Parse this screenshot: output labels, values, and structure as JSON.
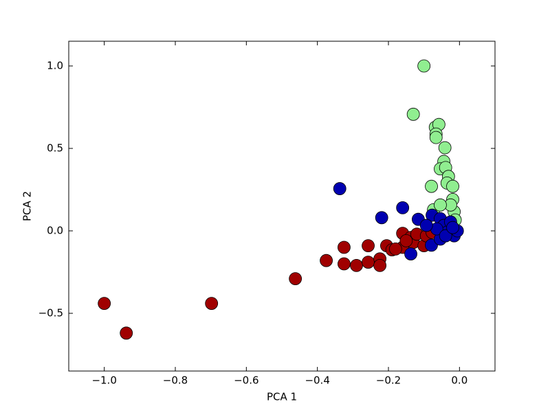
{
  "chart_data": {
    "type": "scatter",
    "xlabel": "PCA 1",
    "ylabel": "PCA 2",
    "xlim": [
      -1.1,
      0.1
    ],
    "ylim": [
      -0.85,
      1.15
    ],
    "xticks": [
      {
        "value": -1,
        "label": "−1.0"
      },
      {
        "value": -0.8,
        "label": "−0.8"
      },
      {
        "value": -0.6,
        "label": "−0.6"
      },
      {
        "value": -0.4,
        "label": "−0.4"
      },
      {
        "value": -0.2,
        "label": "−0.2"
      },
      {
        "value": 0,
        "label": "0.0"
      }
    ],
    "yticks": [
      {
        "value": -0.5,
        "label": "−0.5"
      },
      {
        "value": 0,
        "label": "0.0"
      },
      {
        "value": 0.5,
        "label": "0.5"
      },
      {
        "value": 1,
        "label": "1.0"
      }
    ],
    "series": [
      {
        "color": "#90ee90",
        "x": [
          -0.1,
          -0.13,
          -0.068,
          -0.058,
          -0.066,
          -0.066,
          -0.041,
          -0.044,
          -0.054,
          -0.039,
          -0.031,
          -0.035,
          -0.079,
          -0.019,
          -0.019,
          -0.015,
          -0.025,
          -0.012,
          -0.073,
          -0.054
        ],
        "values": [
          1.0,
          0.707,
          0.628,
          0.645,
          0.587,
          0.566,
          0.504,
          0.421,
          0.376,
          0.384,
          0.33,
          0.29,
          0.27,
          0.27,
          0.19,
          0.116,
          0.157,
          0.066,
          0.128,
          0.157
        ]
      },
      {
        "color": "#a00000",
        "x": [
          -1.0,
          -0.938,
          -0.698,
          -0.462,
          -0.375,
          -0.325,
          -0.325,
          -0.29,
          -0.257,
          -0.257,
          -0.224,
          -0.224,
          -0.205,
          -0.19,
          -0.16,
          -0.16,
          -0.137,
          -0.13,
          -0.12,
          -0.1,
          -0.093,
          -0.077,
          -0.15,
          -0.18
        ],
        "values": [
          -0.44,
          -0.62,
          -0.44,
          -0.29,
          -0.18,
          -0.1,
          -0.2,
          -0.21,
          -0.09,
          -0.19,
          -0.17,
          -0.21,
          -0.09,
          -0.115,
          -0.015,
          -0.1,
          -0.04,
          -0.07,
          -0.02,
          -0.09,
          -0.03,
          -0.01,
          -0.06,
          -0.11
        ]
      },
      {
        "color": "#0000b0",
        "x": [
          -0.337,
          -0.16,
          -0.219,
          -0.137,
          -0.116,
          -0.079,
          -0.054,
          -0.077,
          -0.054,
          -0.044,
          -0.035,
          -0.025,
          -0.015,
          -0.006,
          -0.064,
          -0.093,
          -0.039,
          -0.019
        ],
        "values": [
          0.256,
          0.14,
          0.08,
          -0.14,
          0.07,
          -0.087,
          -0.05,
          0.095,
          0.074,
          0.033,
          -0.008,
          0.054,
          -0.03,
          0.0,
          0.012,
          0.033,
          -0.03,
          0.02
        ]
      }
    ]
  }
}
